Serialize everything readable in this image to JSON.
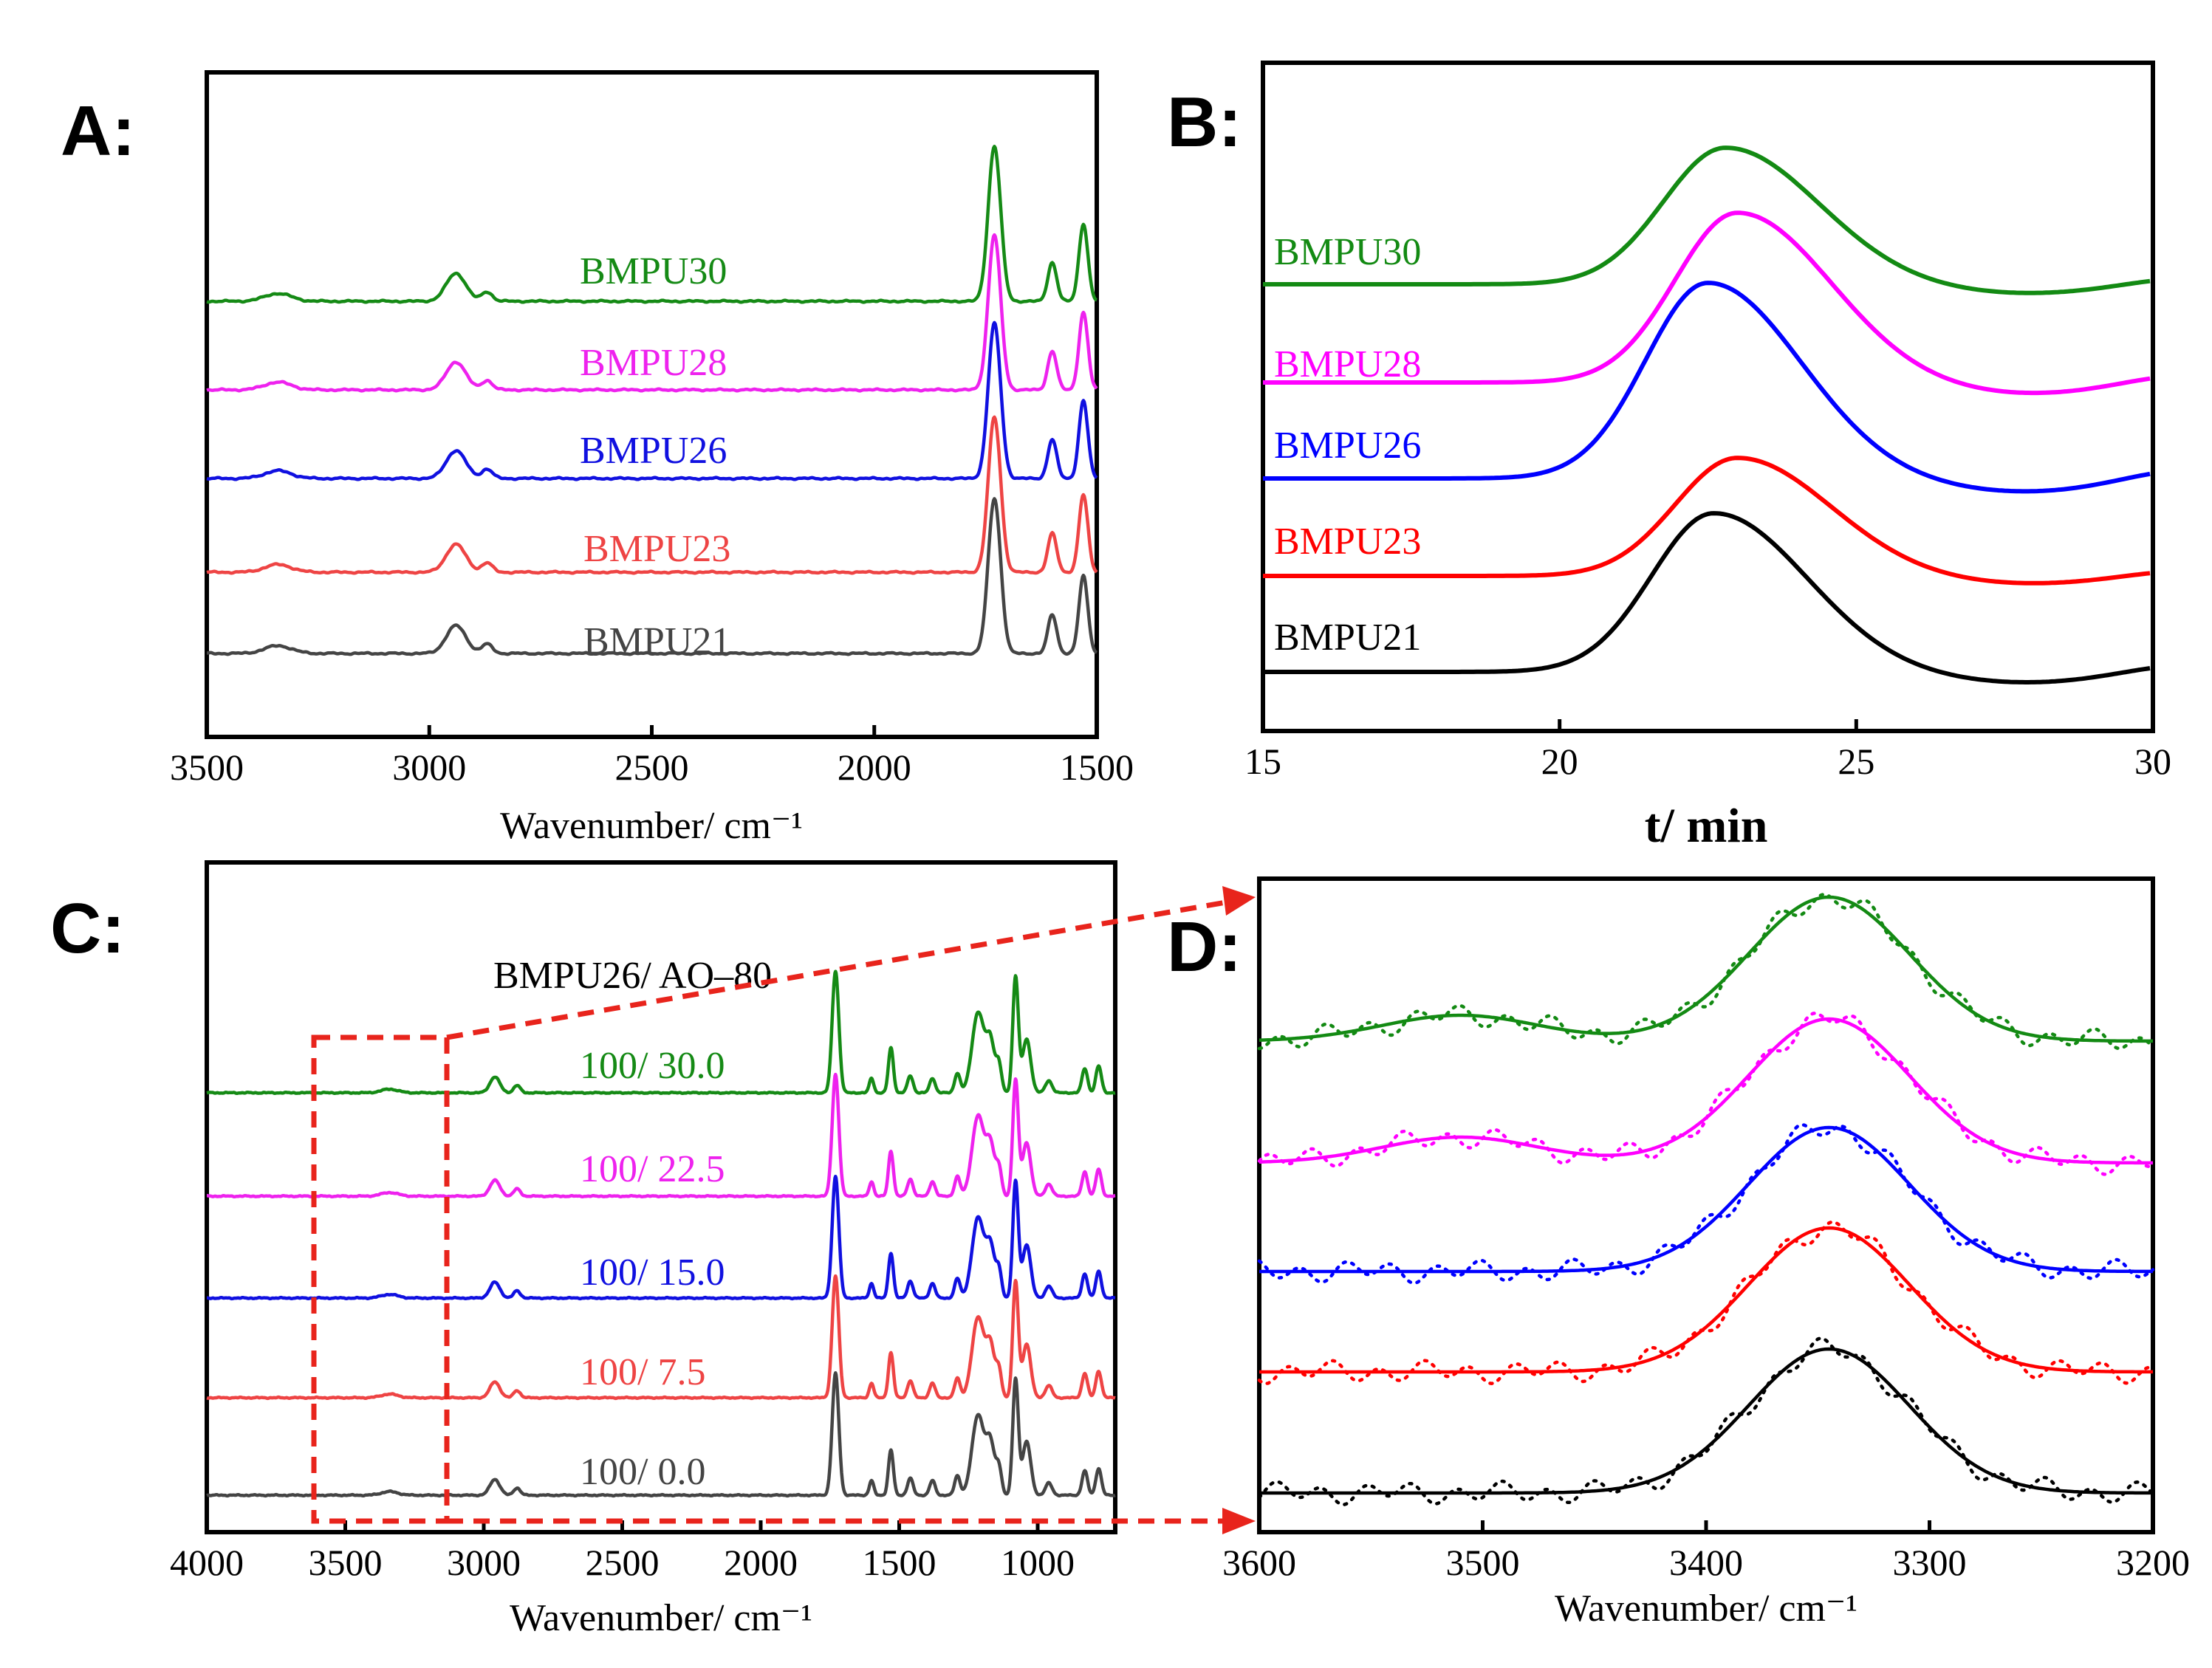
{
  "panels": [
    {
      "letter": "A:"
    },
    {
      "letter": "B:"
    },
    {
      "letter": "C:"
    },
    {
      "letter": "D:"
    }
  ],
  "colors": {
    "black": "#444444",
    "red": "#ee4444",
    "blue": "#1010e0",
    "magenta": "#ee22ee",
    "green": "#158a15",
    "zoom_box": "#e8241c"
  },
  "chart_data": [
    {
      "id": "A",
      "type": "line",
      "xlabel": "Wavenumber/ cm⁻¹",
      "xlim": [
        3500,
        1500
      ],
      "x_reversed": true,
      "xticks": [
        3500,
        3000,
        2500,
        2000,
        1500
      ],
      "y_axis": "offset stacked, no ticks",
      "peaks_cm-1": [
        3340,
        2940,
        2870,
        1730,
        1600,
        1530
      ],
      "series": [
        {
          "name": "BMPU21",
          "color": "#444444"
        },
        {
          "name": "BMPU23",
          "color": "#ee4444"
        },
        {
          "name": "BMPU26",
          "color": "#1010e0"
        },
        {
          "name": "BMPU28",
          "color": "#ee22ee"
        },
        {
          "name": "BMPU30",
          "color": "#158a15"
        }
      ]
    },
    {
      "id": "B",
      "type": "line",
      "xlabel": "t/ min",
      "xlim": [
        15,
        30
      ],
      "xticks": [
        15,
        20,
        25,
        30
      ],
      "y_axis": "offset stacked, no ticks",
      "series": [
        {
          "name": "BMPU21",
          "color": "#000000",
          "peak_min": 22.6
        },
        {
          "name": "BMPU23",
          "color": "#ff0000",
          "peak_min": 23.0
        },
        {
          "name": "BMPU26",
          "color": "#0000ff",
          "peak_min": 22.5
        },
        {
          "name": "BMPU28",
          "color": "#ff00ff",
          "peak_min": 23.0
        },
        {
          "name": "BMPU30",
          "color": "#138a13",
          "peak_min": 22.8
        }
      ]
    },
    {
      "id": "C",
      "type": "line",
      "title": "BMPU26/ AO–80",
      "xlabel": "Wavenumber/ cm⁻¹",
      "xlim": [
        4000,
        720
      ],
      "x_reversed": true,
      "xticks": [
        4000,
        3500,
        3000,
        2500,
        2000,
        1500,
        1000
      ],
      "y_axis": "offset stacked, no ticks",
      "zoom_region_cm-1": [
        3600,
        3200
      ],
      "series": [
        {
          "name": "100/ 0.0",
          "color": "#444444"
        },
        {
          "name": "100/ 7.5",
          "color": "#ee4444"
        },
        {
          "name": "100/ 15.0",
          "color": "#1010e0"
        },
        {
          "name": "100/ 22.5",
          "color": "#ee22ee"
        },
        {
          "name": "100/ 30.0",
          "color": "#158a15"
        }
      ]
    },
    {
      "id": "D",
      "type": "line",
      "xlabel": "Wavenumber/ cm⁻¹",
      "xlim": [
        3600,
        3200
      ],
      "x_reversed": true,
      "xticks": [
        3600,
        3500,
        3400,
        3300,
        3200
      ],
      "y_axis": "offset stacked, no ticks",
      "series": [
        {
          "color": "#000000",
          "peaks_cm-1": [
            3345
          ]
        },
        {
          "color": "#ff0000",
          "peaks_cm-1": [
            3345
          ]
        },
        {
          "color": "#0000ff",
          "peaks_cm-1": [
            3345
          ]
        },
        {
          "color": "#ff00ff",
          "peaks_cm-1": [
            3345,
            3510
          ]
        },
        {
          "color": "#138a13",
          "peaks_cm-1": [
            3345,
            3510
          ]
        }
      ]
    }
  ]
}
